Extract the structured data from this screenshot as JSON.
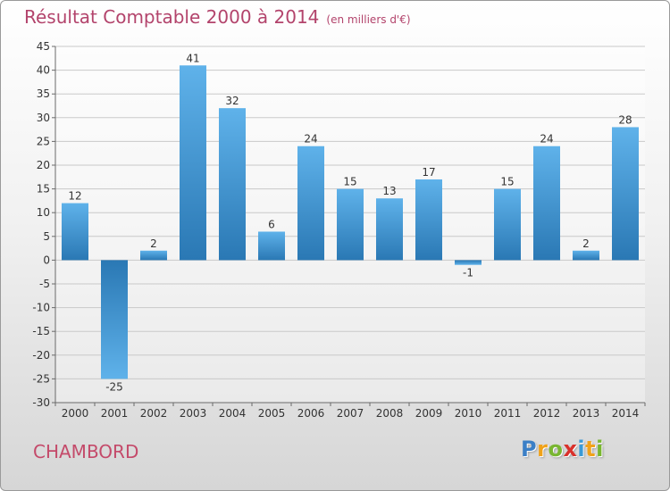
{
  "title": "Résultat Comptable 2000 à 2014",
  "subtitle": "(en milliers d'€)",
  "town": "CHAMBORD",
  "brand": {
    "letters": [
      "P",
      "r",
      "o",
      "x",
      "i",
      "t",
      "i"
    ],
    "colors": [
      "#3b7fc6",
      "#f0a21a",
      "#79b631",
      "#d9312b",
      "#3b9ad6",
      "#f0a21a",
      "#79b631"
    ]
  },
  "colors": {
    "title": "#b3446c",
    "bar_dark": "#2a78b4",
    "bar_light": "#5fb2ea",
    "grid": "#c9c9c9",
    "axis": "#6a6a6a"
  },
  "chart_data": {
    "type": "bar",
    "title": "Résultat Comptable 2000 à 2014",
    "xlabel": "",
    "ylabel": "",
    "categories": [
      "2000",
      "2001",
      "2002",
      "2003",
      "2004",
      "2005",
      "2006",
      "2007",
      "2008",
      "2009",
      "2010",
      "2011",
      "2012",
      "2013",
      "2014"
    ],
    "values": [
      12,
      -25,
      2,
      41,
      32,
      6,
      24,
      15,
      13,
      17,
      -1,
      15,
      24,
      2,
      28
    ],
    "ylim": [
      -30,
      45
    ],
    "yticks": [
      -30,
      -25,
      -20,
      -15,
      -10,
      -5,
      0,
      5,
      10,
      15,
      20,
      25,
      30,
      35,
      40,
      45
    ],
    "grid": true,
    "data_labels": true
  }
}
